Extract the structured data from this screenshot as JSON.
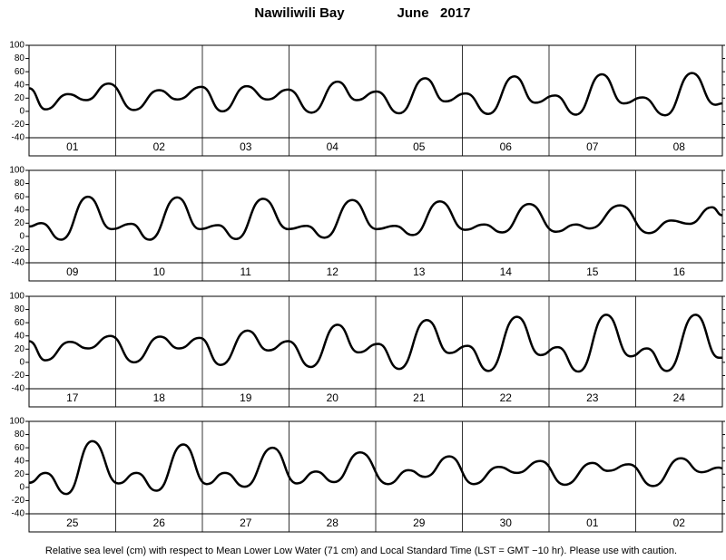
{
  "location": "Nawiliwili Bay",
  "period": "June   2017",
  "footer": "Relative sea level (cm) with respect to Mean Lower Low Water (71 cm) and Local Standard Time (LST = GMT −10 hr). Please use with caution.",
  "chart_data": [
    {
      "type": "line",
      "color": "#000000",
      "xlim": [
        0,
        8
      ],
      "ylim": [
        -40,
        100
      ],
      "yticks": [
        -40,
        -20,
        0,
        20,
        40,
        60,
        80,
        100
      ],
      "day_labels": [
        "01",
        "02",
        "03",
        "04",
        "05",
        "06",
        "07",
        "08"
      ],
      "x": [
        0,
        0.19,
        0.45,
        0.66,
        0.92,
        1.21,
        1.5,
        1.71,
        1.99,
        2.23,
        2.51,
        2.75,
        2.99,
        3.26,
        3.56,
        3.78,
        4.01,
        4.27,
        4.57,
        4.8,
        5.04,
        5.3,
        5.6,
        5.84,
        6.07,
        6.31,
        6.61,
        6.86,
        7.08,
        7.34,
        7.65,
        7.92,
        8
      ],
      "values": [
        35,
        3,
        26,
        17,
        42,
        2,
        32,
        18,
        37,
        0,
        38,
        18,
        33,
        -2,
        45,
        17,
        30,
        -3,
        50,
        15,
        27,
        -4,
        53,
        13,
        24,
        -5,
        56,
        12,
        21,
        -6,
        58,
        10,
        12
      ]
    },
    {
      "type": "line",
      "color": "#000000",
      "xlim": [
        0,
        8
      ],
      "ylim": [
        -40,
        100
      ],
      "yticks": [
        -40,
        -20,
        0,
        20,
        40,
        60,
        80,
        100
      ],
      "day_labels": [
        "09",
        "10",
        "11",
        "12",
        "13",
        "14",
        "15",
        "16"
      ],
      "x": [
        0,
        0.14,
        0.37,
        0.68,
        0.95,
        1.18,
        1.39,
        1.71,
        1.97,
        2.18,
        2.39,
        2.7,
        2.99,
        3.2,
        3.41,
        3.73,
        4.01,
        4.22,
        4.43,
        4.74,
        5.03,
        5.25,
        5.46,
        5.77,
        6.08,
        6.31,
        6.47,
        6.82,
        7.15,
        7.41,
        7.62,
        7.88,
        8
      ],
      "values": [
        15,
        20,
        -5,
        60,
        11,
        19,
        -5,
        59,
        11,
        17,
        -4,
        57,
        11,
        16,
        -2,
        55,
        11,
        16,
        2,
        53,
        10,
        18,
        6,
        49,
        7,
        18,
        12,
        47,
        5,
        24,
        19,
        44,
        32
      ]
    },
    {
      "type": "line",
      "color": "#000000",
      "xlim": [
        0,
        8
      ],
      "ylim": [
        -40,
        100
      ],
      "yticks": [
        -40,
        -20,
        0,
        20,
        40,
        60,
        80,
        100
      ],
      "day_labels": [
        "17",
        "18",
        "19",
        "20",
        "21",
        "22",
        "23",
        "24"
      ],
      "x": [
        0,
        0.19,
        0.47,
        0.68,
        0.94,
        1.21,
        1.51,
        1.73,
        1.97,
        2.21,
        2.52,
        2.76,
        2.99,
        3.25,
        3.56,
        3.8,
        4.03,
        4.27,
        4.59,
        4.85,
        5.06,
        5.3,
        5.63,
        5.9,
        6.1,
        6.34,
        6.66,
        6.94,
        7.13,
        7.36,
        7.69,
        7.96,
        8
      ],
      "values": [
        32,
        3,
        31,
        21,
        40,
        0,
        39,
        21,
        37,
        -4,
        48,
        18,
        32,
        -7,
        57,
        15,
        28,
        -10,
        64,
        14,
        25,
        -13,
        69,
        11,
        23,
        -14,
        72,
        9,
        21,
        -13,
        72,
        7,
        7
      ]
    },
    {
      "type": "line",
      "color": "#000000",
      "xlim": [
        0,
        8
      ],
      "ylim": [
        -40,
        100
      ],
      "yticks": [
        -40,
        -20,
        0,
        20,
        40,
        60,
        80,
        100
      ],
      "day_labels": [
        "25",
        "26",
        "27",
        "28",
        "29",
        "30",
        "01",
        "02"
      ],
      "x": [
        0,
        0.19,
        0.43,
        0.73,
        1.03,
        1.24,
        1.47,
        1.78,
        2.05,
        2.26,
        2.49,
        2.81,
        3.09,
        3.31,
        3.52,
        3.82,
        4.14,
        4.38,
        4.57,
        4.85,
        5.13,
        5.42,
        5.63,
        5.9,
        6.18,
        6.5,
        6.68,
        6.92,
        7.2,
        7.52,
        7.76,
        7.96,
        8
      ],
      "values": [
        7,
        22,
        -10,
        70,
        6,
        22,
        -5,
        65,
        5,
        22,
        1,
        60,
        6,
        24,
        8,
        53,
        5,
        26,
        16,
        47,
        5,
        31,
        22,
        40,
        4,
        37,
        25,
        35,
        2,
        44,
        23,
        30,
        29
      ]
    }
  ]
}
